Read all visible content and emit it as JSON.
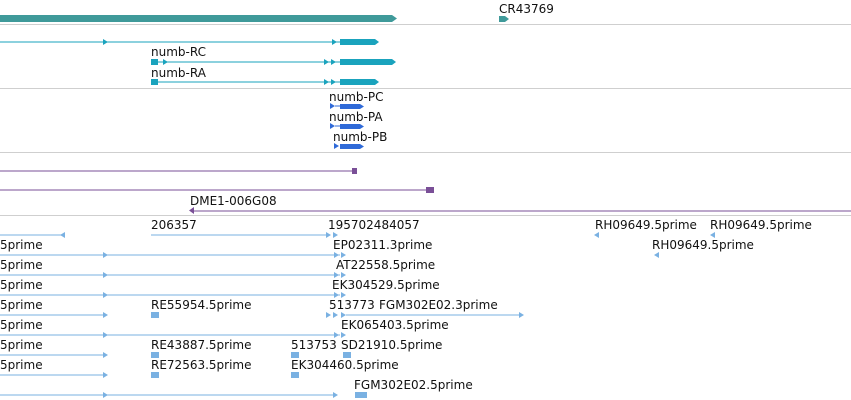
{
  "tracks": {
    "ncrna": {
      "labels": [
        "CR43769"
      ]
    },
    "transcripts": {
      "labels": [
        "numb-RC",
        "numb-RA"
      ]
    },
    "proteins": {
      "labels": [
        "numb-PC",
        "numb-PA",
        "numb-PB"
      ]
    },
    "insertions": {
      "labels": [
        "DME1-006G08"
      ]
    },
    "ests": {
      "labels": [
        "206357",
        "195702484057",
        "RH09649.5prime",
        "RH09649.5prime",
        "5prime",
        "EP02311.3prime",
        "RH09649.5prime",
        "5prime",
        "AT22558.5prime",
        "5prime",
        "EK304529.5prime",
        "5prime",
        "RE55954.5prime",
        "513773",
        "FGM302E02.3prime",
        "5prime",
        "EK065403.5prime",
        "5prime",
        "RE43887.5prime",
        "513753",
        "SD21910.5prime",
        "5prime",
        "RE72563.5prime",
        "EK304460.5prime",
        "FGM302E02.5prime"
      ]
    }
  },
  "colors": {
    "ncrna": "#3f9a9a",
    "transcript": "#1aa3bd",
    "protein": "#2f6ad8",
    "insertion": "#7a4f97",
    "est": "#7ab1e2",
    "separator": "#cfcfcf"
  }
}
